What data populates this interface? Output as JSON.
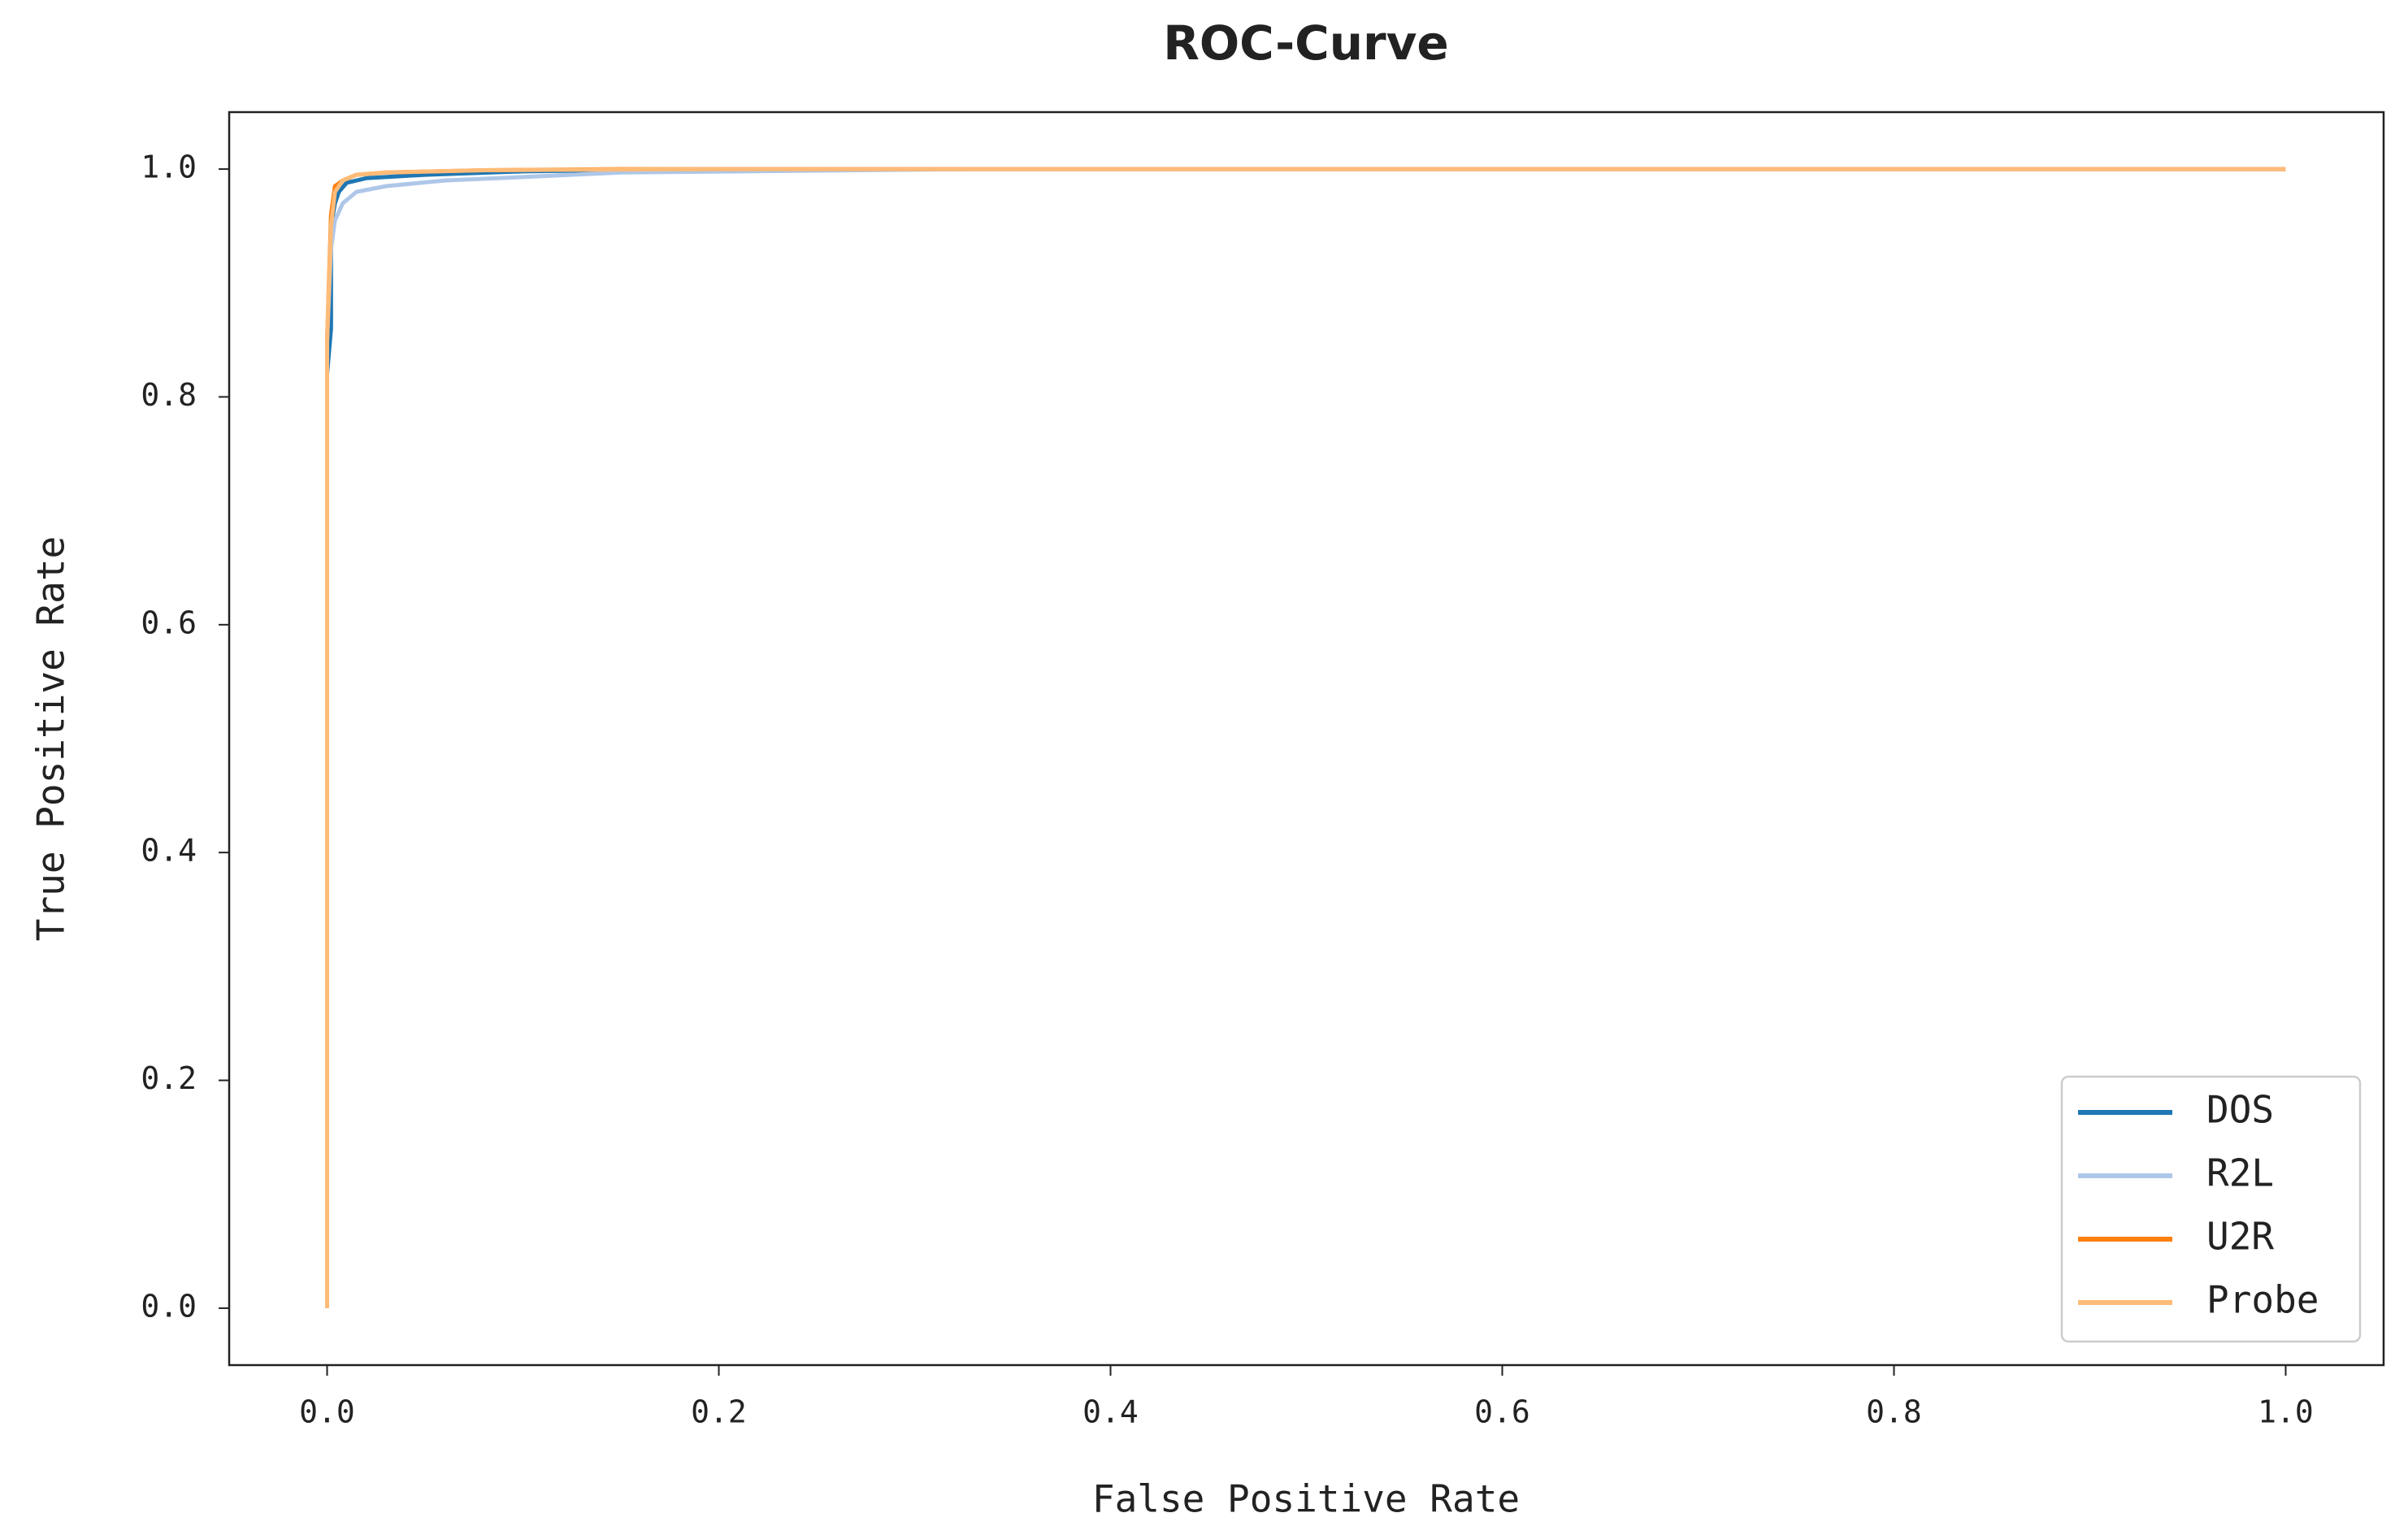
{
  "chart_data": {
    "type": "line",
    "title": "ROC-Curve",
    "x_label": "False Positive Rate",
    "y_label": "True Positive Rate",
    "xlim": [
      -0.05,
      1.05
    ],
    "ylim": [
      -0.05,
      1.05
    ],
    "xticks": [
      {
        "value": 0,
        "label": "0.0"
      },
      0.2,
      0.4,
      0.6,
      0.8,
      {
        "value": 1,
        "label": "1.0"
      }
    ],
    "yticks": [
      {
        "value": 0,
        "label": "0.0"
      },
      0.2,
      0.4,
      0.6,
      0.8,
      {
        "value": 1,
        "label": "1.0"
      }
    ],
    "legend": "lower right",
    "series": [
      {
        "name": "DOS",
        "color": "#1f77b4",
        "x": [
          0,
          0,
          0.002,
          0.002,
          0.004,
          0.006,
          0.01,
          0.02,
          0.05,
          0.1,
          0.2,
          1
        ],
        "values": [
          0,
          0.82,
          0.86,
          0.95,
          0.97,
          0.98,
          0.988,
          0.992,
          0.995,
          0.998,
          1,
          1
        ]
      },
      {
        "name": "R2L",
        "color": "#aec7e8",
        "x": [
          0,
          0,
          0.002,
          0.004,
          0.008,
          0.015,
          0.03,
          0.06,
          0.1,
          0.15,
          0.33,
          1
        ],
        "values": [
          0,
          0.85,
          0.93,
          0.955,
          0.97,
          0.98,
          0.985,
          0.99,
          0.993,
          0.997,
          1,
          1
        ]
      },
      {
        "name": "U2R",
        "color": "#ff7f0e",
        "x": [
          0,
          0,
          0.002,
          0.004,
          0.008,
          0.015,
          0.03,
          0.08,
          0.15,
          1
        ],
        "values": [
          0,
          0.85,
          0.96,
          0.985,
          0.99,
          0.995,
          0.997,
          0.999,
          1,
          1
        ]
      },
      {
        "name": "Probe",
        "color": "#ffbb78",
        "x": [
          0,
          0,
          0.002,
          0.004,
          0.008,
          0.015,
          0.03,
          0.08,
          0.2,
          1
        ],
        "values": [
          0,
          0.85,
          0.95,
          0.98,
          0.99,
          0.995,
          0.997,
          0.999,
          1,
          1
        ]
      }
    ]
  }
}
